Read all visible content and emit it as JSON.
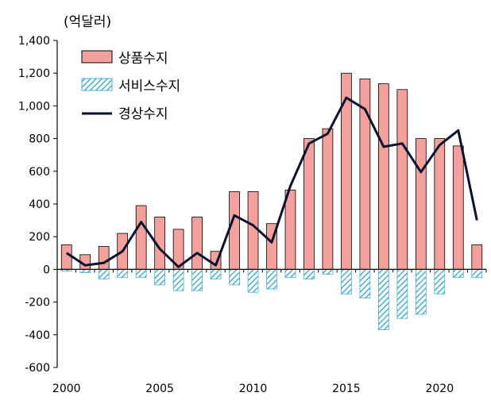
{
  "chart_data": {
    "type": "bar",
    "unit_label": "(억달러)",
    "x": [
      2000,
      2001,
      2002,
      2003,
      2004,
      2005,
      2006,
      2007,
      2008,
      2009,
      2010,
      2011,
      2012,
      2013,
      2014,
      2015,
      2016,
      2017,
      2018,
      2019,
      2020,
      2021,
      2022
    ],
    "x_tick_labels": [
      "2000",
      "2005",
      "2010",
      "2015",
      "2020"
    ],
    "y_tick_labels": [
      "1,400",
      "1,200",
      "1,000",
      "800",
      "600",
      "400",
      "200",
      "0",
      "-200",
      "-400",
      "-600"
    ],
    "ylim": [
      -600,
      1400
    ],
    "series": [
      {
        "name": "상품수지",
        "kind": "bar",
        "color": "#F4A09C",
        "values": [
          150,
          90,
          140,
          220,
          390,
          320,
          245,
          320,
          110,
          475,
          475,
          280,
          485,
          800,
          860,
          1200,
          1165,
          1135,
          1100,
          800,
          800,
          755,
          150
        ]
      },
      {
        "name": "서비스수지",
        "kind": "bar",
        "color": "#45B0D0",
        "pattern": "hatched",
        "values": [
          -10,
          -20,
          -60,
          -50,
          -50,
          -95,
          -130,
          -130,
          -60,
          -95,
          -140,
          -120,
          -50,
          -60,
          -30,
          -150,
          -175,
          -370,
          -300,
          -275,
          -150,
          -50,
          -50
        ]
      },
      {
        "name": "경상수지",
        "kind": "line",
        "color": "#0B1230",
        "values": [
          100,
          25,
          40,
          110,
          290,
          125,
          15,
          100,
          25,
          330,
          270,
          165,
          510,
          770,
          830,
          1050,
          980,
          750,
          770,
          595,
          760,
          850,
          300
        ]
      }
    ]
  }
}
